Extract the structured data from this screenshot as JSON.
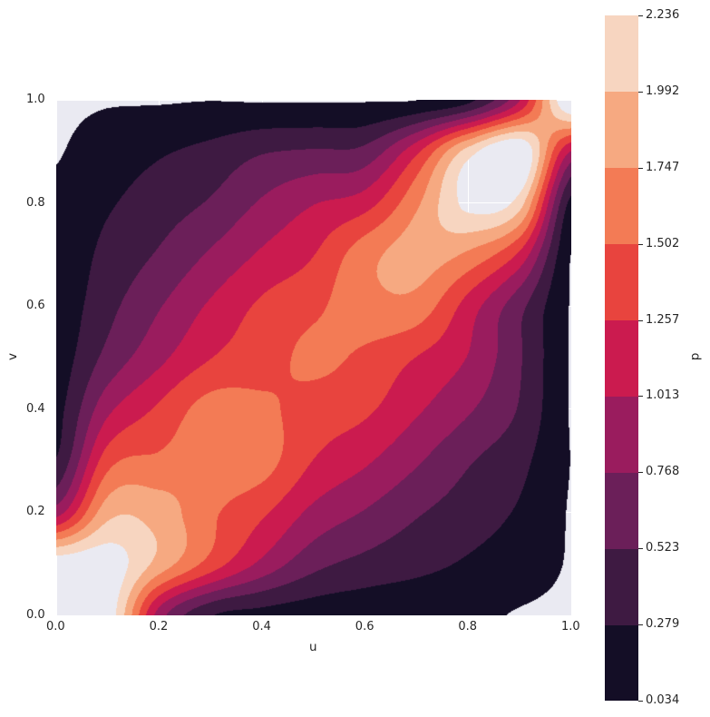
{
  "chart_data": {
    "type": "contour",
    "xlabel": "u",
    "ylabel": "v",
    "colorbar_label": "p",
    "xlim": [
      0.0,
      1.0
    ],
    "ylim": [
      0.0,
      1.0
    ],
    "grid": true,
    "x_ticks": [
      "0.0",
      "0.2",
      "0.4",
      "0.6",
      "0.8",
      "1.0"
    ],
    "y_ticks": [
      "0.0",
      "0.2",
      "0.4",
      "0.6",
      "0.8",
      "1.0"
    ],
    "levels": [
      0.034,
      0.279,
      0.523,
      0.768,
      1.013,
      1.257,
      1.502,
      1.747,
      1.992,
      2.236
    ],
    "level_labels": [
      "0.034",
      "0.279",
      "0.523",
      "0.768",
      "1.013",
      "1.257",
      "1.502",
      "1.747",
      "1.992",
      "2.236"
    ],
    "band_colors": [
      "#140e26",
      "#3e1a42",
      "#6b1f59",
      "#9a1c5e",
      "#cb1b4f",
      "#e8443e",
      "#f37b55",
      "#f6a981",
      "#f7d5c0"
    ],
    "background_color": "#eaeaf2",
    "grid_x": [
      0.0,
      0.1,
      0.2,
      0.3,
      0.4,
      0.5,
      0.6,
      0.7,
      0.8,
      0.9,
      1.0
    ],
    "grid_y": [
      0.0,
      0.1,
      0.2,
      0.3,
      0.4,
      0.5,
      0.6,
      0.7,
      0.8,
      0.9,
      1.0
    ],
    "z": [
      [
        2.4,
        2.4,
        0.9,
        0.3,
        0.2,
        0.15,
        0.12,
        0.1,
        0.08,
        0.02,
        0.0
      ],
      [
        2.4,
        2.4,
        1.9,
        1.4,
        0.95,
        0.6,
        0.45,
        0.35,
        0.25,
        0.15,
        0.02
      ],
      [
        0.9,
        1.9,
        1.87,
        1.55,
        1.3,
        0.95,
        0.75,
        0.55,
        0.4,
        0.25,
        0.02
      ],
      [
        0.3,
        1.4,
        1.55,
        1.62,
        1.6,
        1.25,
        1.05,
        0.8,
        0.55,
        0.35,
        0.03
      ],
      [
        0.2,
        0.95,
        1.3,
        1.6,
        1.55,
        1.4,
        1.3,
        1.05,
        0.8,
        0.5,
        0.02
      ],
      [
        0.15,
        0.6,
        0.95,
        1.25,
        1.4,
        1.55,
        1.45,
        1.25,
        1.0,
        0.55,
        0.02
      ],
      [
        0.12,
        0.45,
        0.75,
        1.05,
        1.3,
        1.45,
        1.65,
        1.65,
        1.15,
        0.6,
        0.02
      ],
      [
        0.1,
        0.35,
        0.55,
        0.8,
        1.05,
        1.25,
        1.65,
        1.85,
        1.7,
        1.2,
        0.03
      ],
      [
        0.08,
        0.25,
        0.4,
        0.55,
        0.8,
        1.0,
        1.15,
        1.7,
        2.3,
        2.1,
        0.2
      ],
      [
        0.02,
        0.15,
        0.25,
        0.35,
        0.5,
        0.55,
        0.6,
        1.2,
        2.1,
        2.5,
        1.0
      ],
      [
        0.0,
        0.02,
        0.02,
        0.03,
        0.02,
        0.02,
        0.02,
        0.03,
        0.2,
        1.0,
        2.6
      ]
    ]
  }
}
